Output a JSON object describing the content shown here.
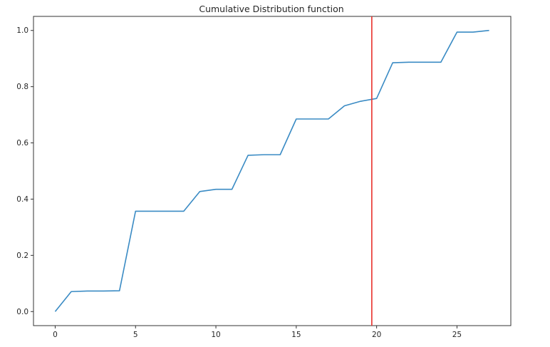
{
  "chart_data": {
    "type": "line",
    "title": "Cumulative Distribution function",
    "xlabel": "",
    "ylabel": "",
    "xlim": [
      -1.35,
      28.35
    ],
    "ylim": [
      -0.05,
      1.05
    ],
    "x_ticks": [
      0,
      5,
      10,
      15,
      20,
      25
    ],
    "y_ticks": [
      0.0,
      0.2,
      0.4,
      0.6,
      0.8,
      1.0
    ],
    "x_tick_labels": [
      "0",
      "5",
      "10",
      "15",
      "20",
      "25"
    ],
    "y_tick_labels": [
      "0.0",
      "0.2",
      "0.4",
      "0.6",
      "0.8",
      "1.0"
    ],
    "grid": false,
    "series": [
      {
        "x": [
          0,
          1,
          2,
          3,
          4,
          5,
          6,
          7,
          8,
          9,
          10,
          11,
          12,
          13,
          14,
          15,
          16,
          17,
          18,
          19,
          20,
          21,
          22,
          23,
          24,
          25,
          26,
          27
        ],
        "values": [
          0.0,
          0.071,
          0.073,
          0.073,
          0.074,
          0.357,
          0.357,
          0.357,
          0.357,
          0.427,
          0.435,
          0.435,
          0.556,
          0.558,
          0.558,
          0.685,
          0.685,
          0.685,
          0.732,
          0.748,
          0.758,
          0.885,
          0.887,
          0.887,
          0.887,
          0.994,
          0.994,
          1.0
        ],
        "color": "#3a8bc4"
      }
    ],
    "vertical_line": {
      "x": 19.7,
      "color": "#e8302a"
    }
  }
}
